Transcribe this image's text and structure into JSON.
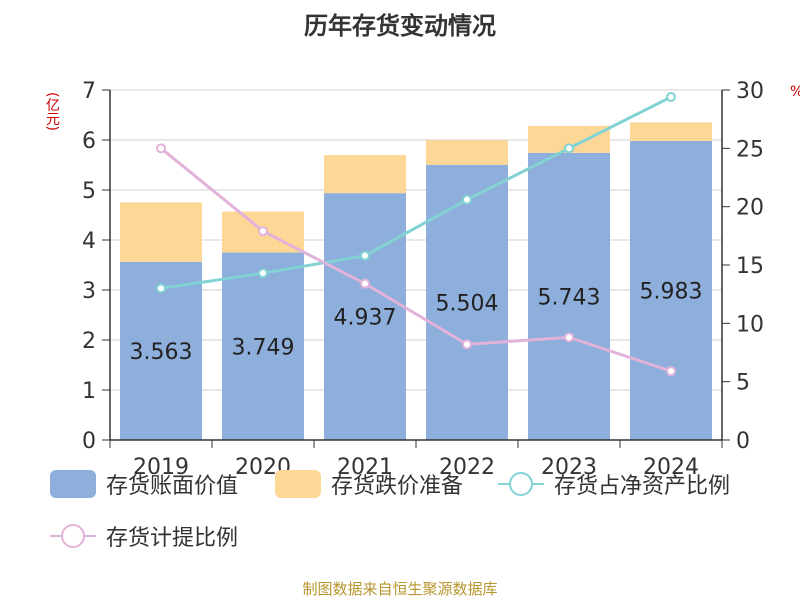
{
  "chart_data": {
    "type": "bar",
    "title": "历年存货变动情况",
    "ylabel": "(亿元)",
    "y2label": "%",
    "categories": [
      "2019",
      "2020",
      "2021",
      "2022",
      "2023",
      "2024"
    ],
    "ylim": [
      0,
      7
    ],
    "y2lim": [
      0,
      30
    ],
    "yticks": [
      "0",
      "1",
      "2",
      "3",
      "4",
      "5",
      "6",
      "7"
    ],
    "y2ticks": [
      "0",
      "5",
      "10",
      "15",
      "20",
      "25",
      "30"
    ],
    "stacked": true,
    "series": [
      {
        "name": "存货账面价值",
        "type": "bar",
        "axis": "left",
        "color": "#8eaedb",
        "values": [
          3.563,
          3.749,
          4.937,
          5.504,
          5.743,
          5.983
        ],
        "labels": [
          "3.563",
          "3.749",
          "4.937",
          "5.504",
          "5.743",
          "5.983"
        ]
      },
      {
        "name": "存货跌价准备",
        "type": "bar",
        "axis": "left",
        "color": "#fdd795",
        "values": [
          1.19,
          0.82,
          0.76,
          0.49,
          0.54,
          0.37
        ]
      },
      {
        "name": "存货占净资产比例",
        "type": "line",
        "axis": "right",
        "color": "#82d2d4",
        "values": [
          13.0,
          14.3,
          15.8,
          20.6,
          25.0,
          29.4
        ]
      },
      {
        "name": "存货计提比例",
        "type": "line",
        "axis": "right",
        "color": "#e2b3da",
        "values": [
          25.0,
          17.9,
          13.4,
          8.2,
          8.8,
          5.9
        ]
      }
    ],
    "grid": true,
    "legend_position": "bottom"
  },
  "source": "制图数据来自恒生聚源数据库"
}
